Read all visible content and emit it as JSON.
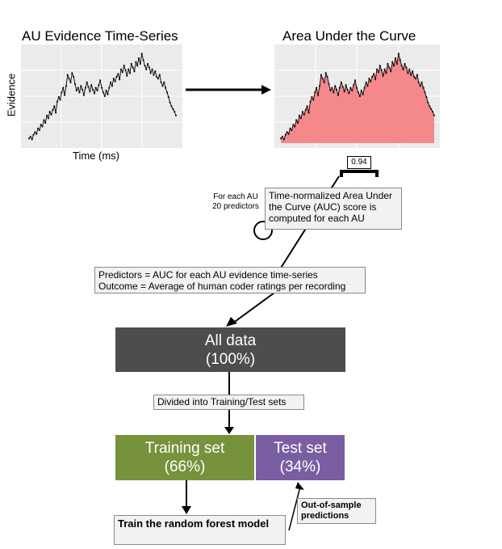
{
  "timeseries_panel": {
    "title": "AU Evidence Time-Series",
    "ylabel": "Evidence",
    "xlabel": "Time (ms)"
  },
  "auc_panel": {
    "title": "Area Under the Curve"
  },
  "auc_value": "0.94",
  "loop_label": {
    "line1": "For each AU",
    "line2": "20 predictors"
  },
  "auc_note": "Time-normalized Area Under the Curve (AUC) score is computed for each AU",
  "predictors_note": {
    "line1": "Predictors = AUC for each AU evidence time-series",
    "line2": "Outcome = Average of human coder ratings per recording"
  },
  "all_data": {
    "label": "All data",
    "percent": "(100%)"
  },
  "split_note": "Divided into Training/Test sets",
  "training": {
    "label": "Training set",
    "percent": "(66%)"
  },
  "test": {
    "label": "Test set",
    "percent": "(34%)"
  },
  "train_note": "Train the random forest model",
  "oos_note": "Out-of-sample predictions",
  "colors": {
    "all_data": "#4d4d4d",
    "training": "#76923c",
    "test": "#7a5ea2",
    "auc_fill": "#f4888a",
    "panel_bg": "#ebebeb"
  },
  "series": [
    0.05,
    0.07,
    0.04,
    0.09,
    0.12,
    0.1,
    0.16,
    0.14,
    0.2,
    0.18,
    0.25,
    0.22,
    0.3,
    0.27,
    0.34,
    0.31,
    0.36,
    0.4,
    0.33,
    0.45,
    0.5,
    0.47,
    0.55,
    0.6,
    0.52,
    0.62,
    0.74,
    0.7,
    0.66,
    0.76,
    0.72,
    0.64,
    0.57,
    0.6,
    0.55,
    0.62,
    0.58,
    0.52,
    0.6,
    0.66,
    0.61,
    0.56,
    0.63,
    0.58,
    0.54,
    0.6,
    0.57,
    0.63,
    0.68,
    0.6,
    0.55,
    0.51,
    0.57,
    0.53,
    0.6,
    0.66,
    0.62,
    0.7,
    0.67,
    0.72,
    0.75,
    0.69,
    0.8,
    0.77,
    0.84,
    0.79,
    0.73,
    0.8,
    0.76,
    0.86,
    0.82,
    0.78,
    0.88,
    0.84,
    0.92,
    0.86,
    0.97,
    0.9,
    0.84,
    0.8,
    0.86,
    0.82,
    0.76,
    0.8,
    0.74,
    0.78,
    0.72,
    0.7,
    0.74,
    0.66,
    0.62,
    0.66,
    0.6,
    0.55,
    0.5,
    0.44,
    0.4,
    0.37,
    0.34,
    0.3
  ]
}
